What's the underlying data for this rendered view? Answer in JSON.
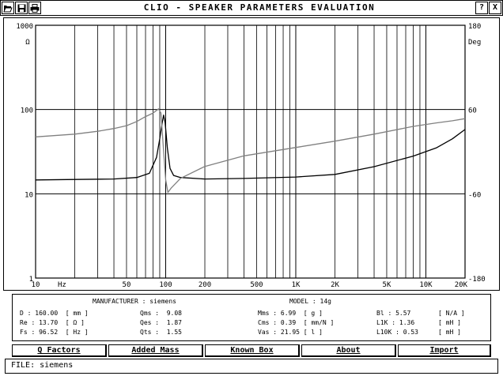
{
  "window": {
    "title": "CLIO - SPEAKER PARAMETERS EVALUATION",
    "help_label": "?",
    "close_label": "X"
  },
  "icons": [
    "folder-open-icon",
    "floppy-disk-icon",
    "printer-icon"
  ],
  "chart_data": {
    "type": "line",
    "x_scale": "log",
    "xlim": [
      10,
      20000
    ],
    "x_ticks": [
      {
        "value": 10,
        "label": "10"
      },
      {
        "value": 50,
        "label": "50"
      },
      {
        "value": 100,
        "label": "100"
      },
      {
        "value": 200,
        "label": "200"
      },
      {
        "value": 500,
        "label": "500"
      },
      {
        "value": 1000,
        "label": "1K"
      },
      {
        "value": 2000,
        "label": "2K"
      },
      {
        "value": 5000,
        "label": "5K"
      },
      {
        "value": 10000,
        "label": "10K"
      },
      {
        "value": 20000,
        "label": "20K"
      }
    ],
    "x_unit": "Hz",
    "y_left": {
      "unit": "Ω",
      "scale": "log",
      "range": [
        1,
        1000
      ],
      "ticks": [
        {
          "value": 1000,
          "label": "1000"
        },
        {
          "value": 100,
          "label": "100"
        },
        {
          "value": 10,
          "label": "10"
        },
        {
          "value": 1,
          "label": "1"
        }
      ]
    },
    "y_right": {
      "unit": "Deg",
      "scale": "linear",
      "range": [
        -180,
        180
      ],
      "ticks": [
        {
          "value": 180,
          "label": "180"
        },
        {
          "value": 60,
          "label": "60"
        },
        {
          "value": -60,
          "label": "-60"
        },
        {
          "value": -180,
          "label": "-180"
        }
      ]
    },
    "grid": true,
    "series": [
      {
        "name": "",
        "axis": "left",
        "color": "#000000",
        "points": [
          [
            10,
            14.6
          ],
          [
            20,
            14.8
          ],
          [
            40,
            15.0
          ],
          [
            60,
            15.6
          ],
          [
            75,
            17.5
          ],
          [
            85,
            27
          ],
          [
            90,
            45
          ],
          [
            94,
            70
          ],
          [
            96.5,
            86
          ],
          [
            99,
            70
          ],
          [
            103,
            35
          ],
          [
            108,
            20
          ],
          [
            115,
            16.5
          ],
          [
            130,
            15.6
          ],
          [
            200,
            15.0
          ],
          [
            400,
            15.2
          ],
          [
            1000,
            15.8
          ],
          [
            2000,
            17.0
          ],
          [
            4000,
            21.0
          ],
          [
            8000,
            28.0
          ],
          [
            12000,
            35.0
          ],
          [
            16000,
            45.0
          ],
          [
            20000,
            58.0
          ]
        ]
      },
      {
        "name": "",
        "axis": "right",
        "color": "#808080",
        "points": [
          [
            10,
            21
          ],
          [
            20,
            25
          ],
          [
            30,
            29
          ],
          [
            40,
            33
          ],
          [
            50,
            37
          ],
          [
            60,
            43
          ],
          [
            70,
            50
          ],
          [
            80,
            55
          ],
          [
            88,
            61
          ],
          [
            92,
            55
          ],
          [
            96.5,
            0
          ],
          [
            100,
            -40
          ],
          [
            104,
            -58
          ],
          [
            110,
            -52
          ],
          [
            130,
            -38
          ],
          [
            200,
            -21
          ],
          [
            400,
            -6
          ],
          [
            1000,
            6
          ],
          [
            2000,
            15
          ],
          [
            4000,
            25
          ],
          [
            8000,
            36
          ],
          [
            12000,
            41
          ],
          [
            16000,
            44
          ],
          [
            20000,
            47
          ]
        ]
      }
    ]
  },
  "params": {
    "manufacturer": "MANUFACTURER : siemens",
    "model": "MODEL : 14g",
    "col1": [
      "D : 160.00  [ mm ]",
      "Re : 13.70  [ Ω ]",
      "Fs : 96.52  [ Hz ]"
    ],
    "col2": [
      "Qms :  9.08",
      "Qes :  1.87",
      "Qts :  1.55"
    ],
    "col3": [
      "Mms : 6.99  [ g ]",
      "Cms : 0.39  [ mm/N ]",
      "Vas : 21.95 [ l ]"
    ],
    "col4": [
      "Bl : 5.57",
      "L1K : 1.36",
      "L10K : 0.53"
    ],
    "col5": [
      "[ N/A ]",
      "[ mH ]",
      "[ mH ]"
    ]
  },
  "buttons": {
    "q_factors": "Q Factors",
    "added_mass": "Added Mass",
    "known_box": "Known Box",
    "about": "About",
    "import": "Import"
  },
  "status": {
    "file": "FILE: siemens"
  }
}
